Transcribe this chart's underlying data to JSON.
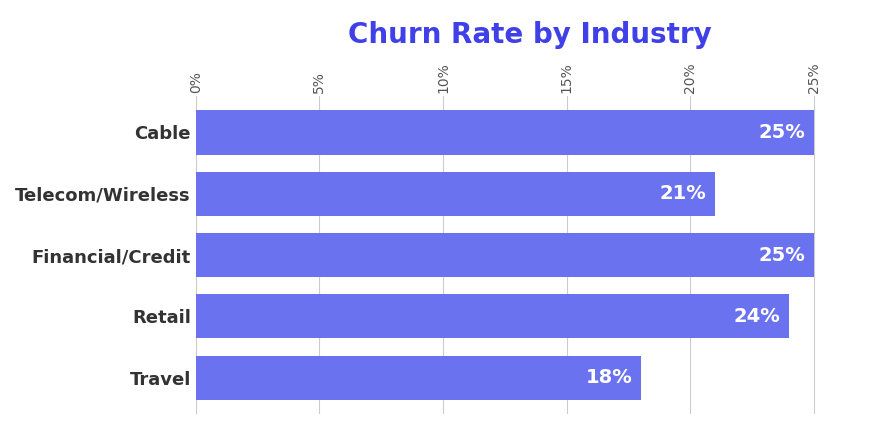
{
  "title": "Churn Rate by Industry",
  "title_color": "#4040e8",
  "title_fontsize": 20,
  "title_fontweight": "bold",
  "categories": [
    "Travel",
    "Retail",
    "Financial/Credit",
    "Telecom/Wireless",
    "Cable"
  ],
  "values": [
    18,
    24,
    25,
    21,
    25
  ],
  "bar_color": "#6b72ef",
  "bar_labels": [
    "18%",
    "24%",
    "25%",
    "21%",
    "25%"
  ],
  "bar_label_color": "#ffffff",
  "bar_label_fontsize": 14,
  "bar_label_fontweight": "bold",
  "xlim": [
    0,
    27.0
  ],
  "xtick_values": [
    0,
    5,
    10,
    15,
    20,
    25
  ],
  "xtick_labels": [
    "0%",
    "5%",
    "10%",
    "15%",
    "20%",
    "25%"
  ],
  "xtick_fontsize": 10,
  "ytick_fontsize": 13,
  "ytick_fontweight": "bold",
  "ytick_color": "#333333",
  "background_color": "#ffffff",
  "grid_color": "#cccccc",
  "bar_height": 0.72,
  "figsize": [
    8.9,
    4.36
  ],
  "dpi": 100
}
